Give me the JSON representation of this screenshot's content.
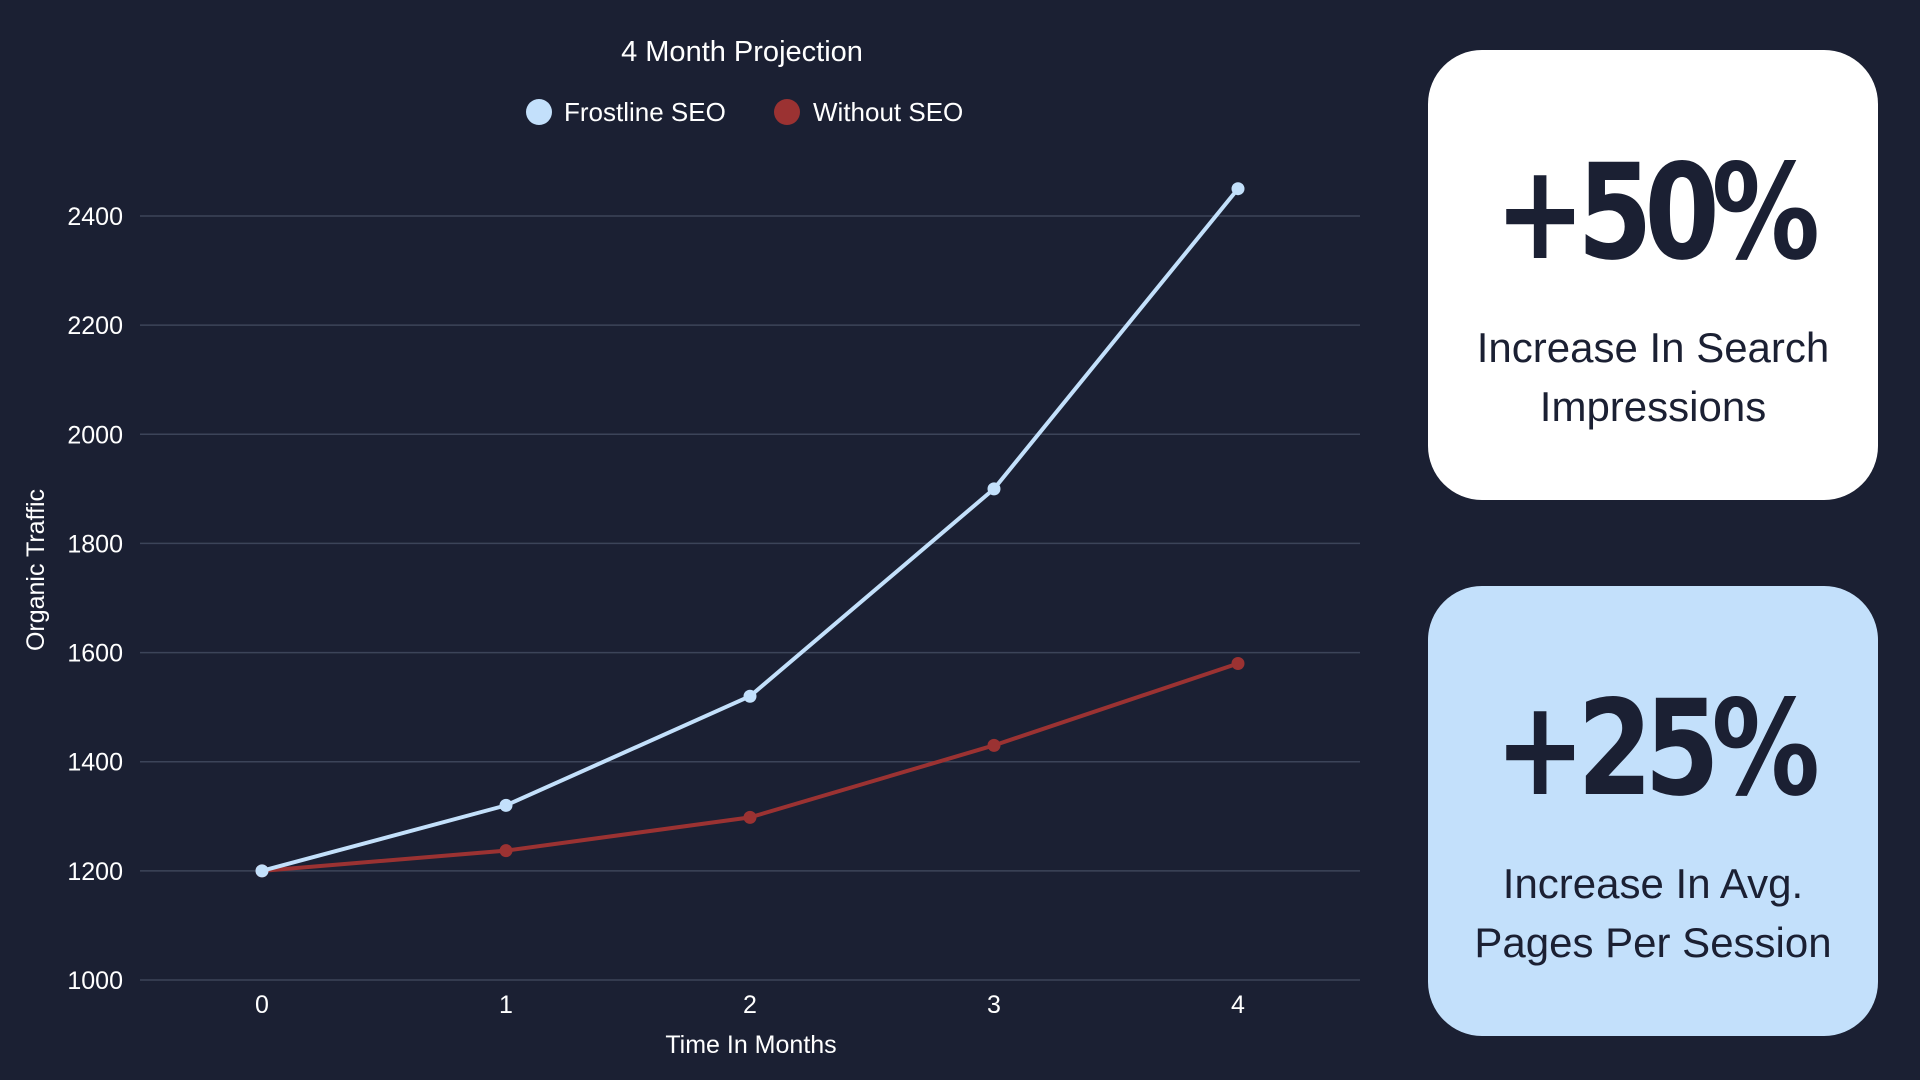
{
  "chart_data": {
    "type": "line",
    "title": "4 Month Projection",
    "xlabel": "Time In Months",
    "ylabel": "Organic Traffic",
    "x": [
      0,
      1,
      2,
      3,
      4
    ],
    "xticks": [
      "0",
      "1",
      "2",
      "3",
      "4"
    ],
    "yticks": [
      "1000",
      "1200",
      "1400",
      "1600",
      "1800",
      "2000",
      "2200",
      "2400"
    ],
    "ylim": [
      1000,
      2400
    ],
    "grid": true,
    "legend_position": "top-center",
    "series": [
      {
        "name": "Frostline SEO",
        "color": "#c3e0fb",
        "values": [
          1200,
          1320,
          1520,
          1900,
          2450
        ]
      },
      {
        "name": "Without SEO",
        "color": "#9b3232",
        "values": [
          1200,
          1237,
          1298,
          1430,
          1580
        ]
      }
    ]
  },
  "cards": [
    {
      "value": "+50%",
      "line1": "Increase In Search",
      "line2": "Impressions"
    },
    {
      "value": "+25%",
      "line1": "Increase In Avg.",
      "line2": "Pages Per Session"
    }
  ]
}
